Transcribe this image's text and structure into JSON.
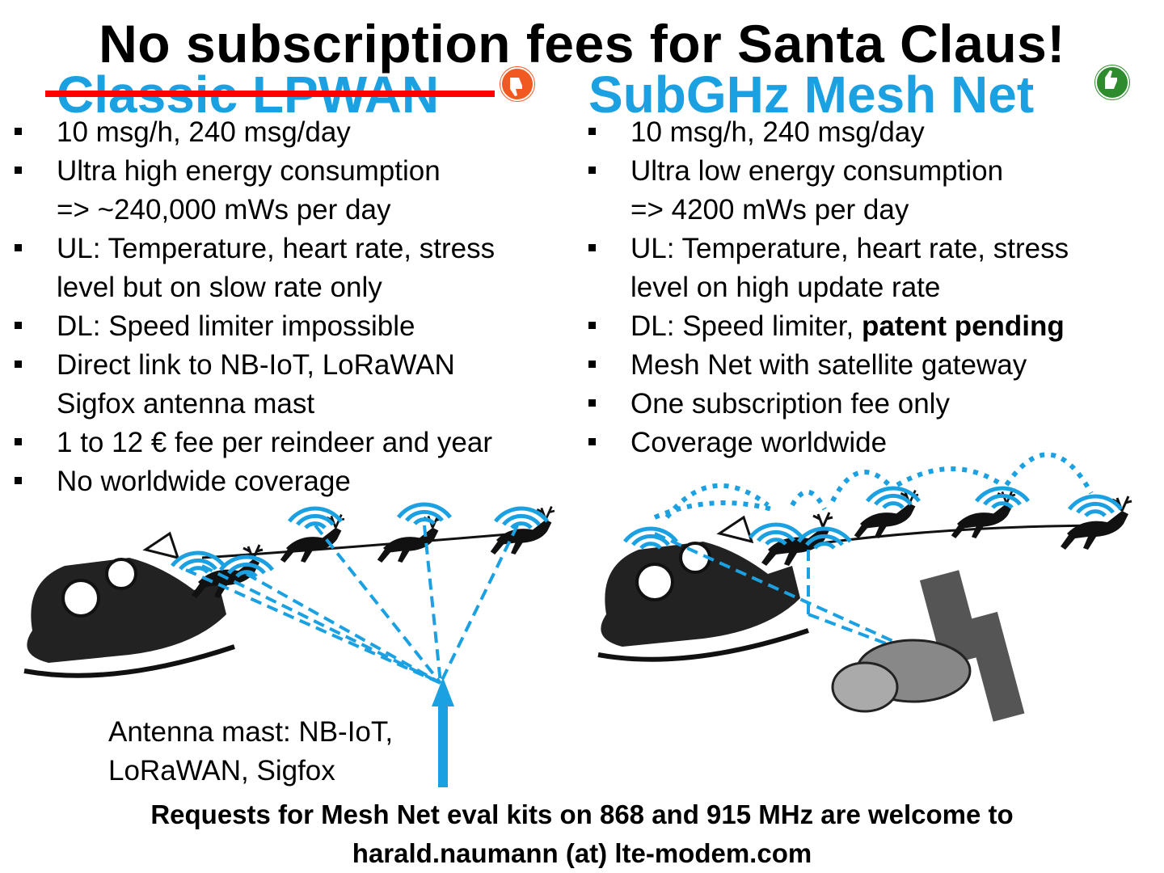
{
  "title": "No subscription fees for Santa Claus!",
  "left": {
    "heading": "Classic LPWAN",
    "thumb_icon": "thumbs-down-icon",
    "thumb_color": "#f05a22",
    "bullets": [
      {
        "lines": [
          "10 msg/h, 240 msg/day"
        ]
      },
      {
        "lines": [
          "Ultra high energy consumption",
          "=> ~240,000 mWs per day"
        ]
      },
      {
        "lines": [
          "UL: Temperature, heart rate, stress",
          "level but on slow rate only"
        ]
      },
      {
        "lines": [
          "DL: Speed limiter impossible"
        ]
      },
      {
        "lines": [
          "Direct link to NB-IoT, LoRaWAN",
          "Sigfox antenna mast"
        ]
      },
      {
        "lines": [
          "1 to 12 € fee per reindeer and year"
        ]
      },
      {
        "lines": [
          "No worldwide coverage"
        ]
      }
    ],
    "mast_caption": [
      "Antenna mast: NB-IoT,",
      "LoRaWAN, Sigfox"
    ]
  },
  "right": {
    "heading": "SubGHz Mesh Net",
    "thumb_icon": "thumbs-up-icon",
    "thumb_color": "#2e8b2e",
    "bullets": [
      {
        "lines": [
          "10 msg/h, 240 msg/day"
        ]
      },
      {
        "lines": [
          "Ultra low energy consumption",
          "=> 4200 mWs per day"
        ]
      },
      {
        "lines": [
          "UL: Temperature, heart rate, stress",
          "level on high update rate"
        ]
      },
      {
        "lines": [
          "DL: Speed limiter, "
        ],
        "bold": "patent pending"
      },
      {
        "lines": [
          "Mesh Net with satellite gateway"
        ]
      },
      {
        "lines": [
          "One subscription fee only"
        ]
      },
      {
        "lines": [
          "Coverage worldwide"
        ]
      }
    ]
  },
  "footer": [
    "Requests for Mesh Net eval kits on 868 and 915 MHz are welcome to",
    "harald.naumann (at) lte-modem.com"
  ],
  "colors": {
    "accent": "#1ba1e2",
    "strike": "#ff0000"
  },
  "icons": [
    "sleigh-icon",
    "reindeer-icon",
    "wifi-signal-icon",
    "satellite-icon",
    "antenna-arrow-icon"
  ]
}
